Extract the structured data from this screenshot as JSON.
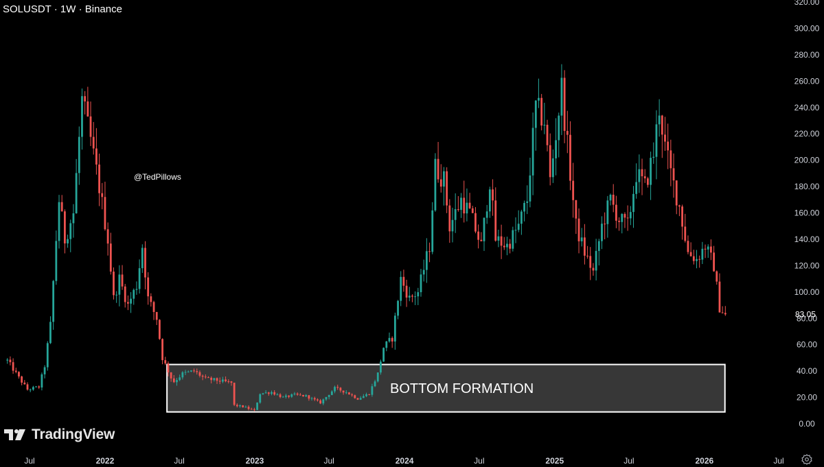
{
  "header": {
    "title": "SOLUSDT · 1W · Binance"
  },
  "watermark_text": "@TedPillows",
  "branding": {
    "name": "TradingView",
    "logo_icon": "tradingview-logo-icon"
  },
  "annotation": {
    "label": "BOTTOM FORMATION"
  },
  "last_price_label": "83.05",
  "settings_icon": "gear-icon",
  "colors": {
    "up": "#26a69a",
    "down": "#ef5350",
    "background": "#000000",
    "zone_fill": "#3a3a3a",
    "zone_border": "#ffffff"
  },
  "chart_data": {
    "type": "candlestick",
    "symbol": "SOLUSDT",
    "interval": "1W",
    "exchange": "Binance",
    "ylim": [
      0,
      320
    ],
    "y_ticks": [
      "0.00",
      "20.00",
      "40.00",
      "60.00",
      "80.00",
      "100.00",
      "120.00",
      "140.00",
      "160.00",
      "180.00",
      "200.00",
      "220.00",
      "240.00",
      "260.00",
      "280.00",
      "300.00",
      "320.00"
    ],
    "x_ticks": [
      "Jul",
      "2022",
      "Jul",
      "2023",
      "Jul",
      "2024",
      "Jul",
      "2025",
      "Jul",
      "2026",
      "Jul"
    ],
    "x_range": [
      "2021-05-01",
      "2026-08-01"
    ],
    "last_price": 83.05,
    "zone": {
      "label": "BOTTOM FORMATION",
      "x_start": "2022-06-01",
      "x_end": "2026-02-20",
      "y_low": 9,
      "y_high": 45
    },
    "anchors": [
      [
        "2021-05-08",
        48
      ],
      [
        "2021-06-05",
        35
      ],
      [
        "2021-06-26",
        26
      ],
      [
        "2021-07-24",
        28
      ],
      [
        "2021-08-07",
        44
      ],
      [
        "2021-08-21",
        75
      ],
      [
        "2021-09-04",
        140
      ],
      [
        "2021-09-11",
        170
      ],
      [
        "2021-09-25",
        140
      ],
      [
        "2021-10-16",
        160
      ],
      [
        "2021-11-06",
        245
      ],
      [
        "2021-11-27",
        215
      ],
      [
        "2021-12-18",
        180
      ],
      [
        "2022-01-08",
        140
      ],
      [
        "2022-01-22",
        95
      ],
      [
        "2022-02-05",
        110
      ],
      [
        "2022-02-26",
        90
      ],
      [
        "2022-03-19",
        105
      ],
      [
        "2022-04-02",
        135
      ],
      [
        "2022-04-16",
        95
      ],
      [
        "2022-05-07",
        80
      ],
      [
        "2022-05-21",
        50
      ],
      [
        "2022-06-11",
        35
      ],
      [
        "2022-06-18",
        32
      ],
      [
        "2022-07-09",
        38
      ],
      [
        "2022-08-06",
        40
      ],
      [
        "2022-09-03",
        34
      ],
      [
        "2022-10-01",
        33
      ],
      [
        "2022-11-05",
        31
      ],
      [
        "2022-11-12",
        14
      ],
      [
        "2022-12-03",
        13
      ],
      [
        "2022-12-31",
        10
      ],
      [
        "2023-01-14",
        23
      ],
      [
        "2023-02-11",
        24
      ],
      [
        "2023-03-11",
        20
      ],
      [
        "2023-04-08",
        22
      ],
      [
        "2023-05-06",
        21
      ],
      [
        "2023-06-10",
        16
      ],
      [
        "2023-07-15",
        27
      ],
      [
        "2023-08-12",
        24
      ],
      [
        "2023-09-09",
        19
      ],
      [
        "2023-10-07",
        23
      ],
      [
        "2023-10-28",
        38
      ],
      [
        "2023-11-11",
        58
      ],
      [
        "2023-12-02",
        65
      ],
      [
        "2023-12-23",
        110
      ],
      [
        "2024-01-13",
        95
      ],
      [
        "2024-02-03",
        100
      ],
      [
        "2024-03-02",
        135
      ],
      [
        "2024-03-16",
        195
      ],
      [
        "2024-04-06",
        185
      ],
      [
        "2024-04-20",
        150
      ],
      [
        "2024-05-18",
        170
      ],
      [
        "2024-06-08",
        160
      ],
      [
        "2024-07-06",
        135
      ],
      [
        "2024-07-27",
        185
      ],
      [
        "2024-08-10",
        140
      ],
      [
        "2024-09-07",
        135
      ],
      [
        "2024-10-05",
        150
      ],
      [
        "2024-10-26",
        170
      ],
      [
        "2024-11-16",
        240
      ],
      [
        "2024-12-07",
        230
      ],
      [
        "2024-12-21",
        185
      ],
      [
        "2025-01-18",
        255
      ],
      [
        "2025-02-01",
        210
      ],
      [
        "2025-02-22",
        150
      ],
      [
        "2025-03-15",
        130
      ],
      [
        "2025-04-05",
        115
      ],
      [
        "2025-04-26",
        150
      ],
      [
        "2025-05-17",
        170
      ],
      [
        "2025-06-07",
        155
      ],
      [
        "2025-06-28",
        150
      ],
      [
        "2025-07-19",
        190
      ],
      [
        "2025-08-09",
        180
      ],
      [
        "2025-08-30",
        205
      ],
      [
        "2025-09-13",
        240
      ],
      [
        "2025-09-27",
        210
      ],
      [
        "2025-10-11",
        190
      ],
      [
        "2025-11-01",
        165
      ],
      [
        "2025-11-22",
        130
      ],
      [
        "2025-12-13",
        125
      ],
      [
        "2026-01-03",
        135
      ],
      [
        "2026-01-24",
        120
      ],
      [
        "2026-02-07",
        88
      ],
      [
        "2026-02-21",
        83
      ]
    ]
  }
}
